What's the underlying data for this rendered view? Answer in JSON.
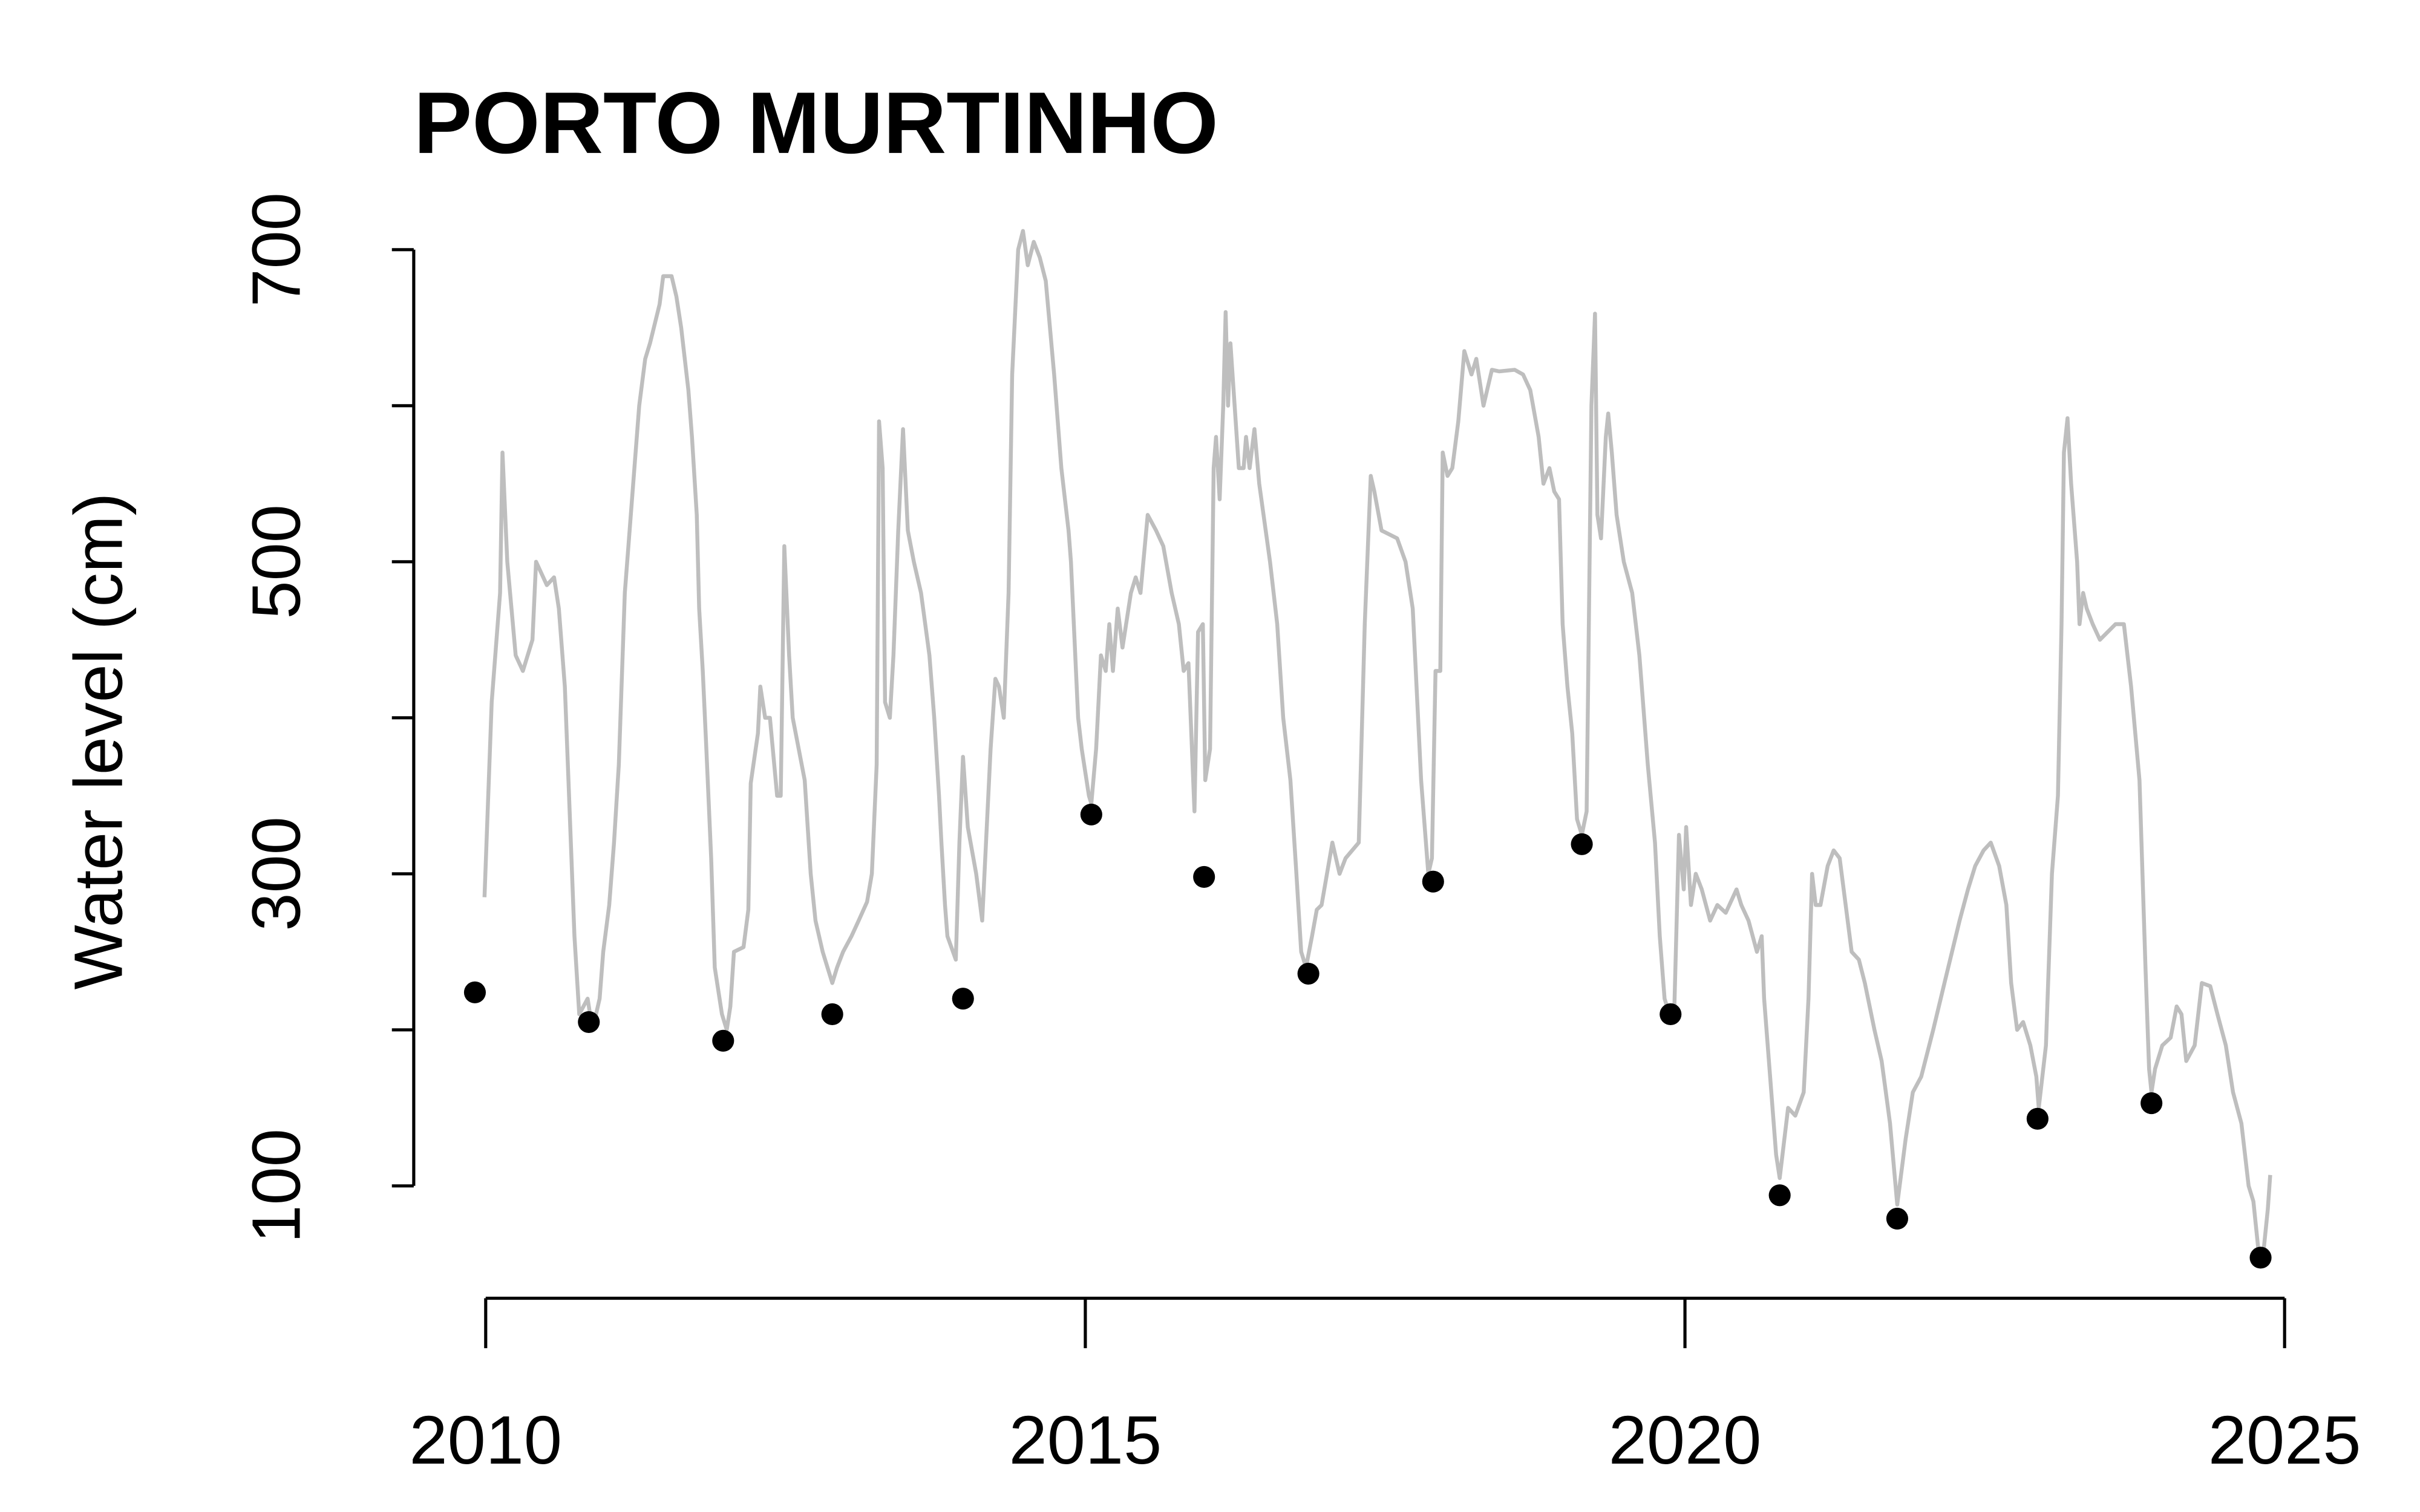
{
  "chart_data": {
    "type": "line",
    "title": "PORTO MURTINHO",
    "y_label": "Water level (cm)",
    "xlim": [
      2009.4,
      2025.4
    ],
    "xticks": [
      2010,
      2015,
      2020,
      2025
    ],
    "ylim": [
      26.5,
      742.5
    ],
    "yticks": [
      100,
      {
        "value": 200,
        "label": null
      },
      300,
      {
        "value": 400,
        "label": null
      },
      500,
      {
        "value": 600,
        "label": null
      },
      700
    ],
    "grid": false,
    "series": [
      {
        "type": "line",
        "color": "#bebebe",
        "x": [
          2009.99,
          2010.05,
          2010.12,
          2010.14,
          2010.18,
          2010.25,
          2010.31,
          2010.39,
          2010.42,
          2010.51,
          2010.57,
          2010.61,
          2010.66,
          2010.7,
          2010.74,
          2010.78,
          2010.85,
          2010.89,
          2010.95,
          2010.98,
          2011.03,
          2011.07,
          2011.11,
          2011.16,
          2011.2,
          2011.24,
          2011.28,
          2011.33,
          2011.37,
          2011.45,
          2011.48,
          2011.55,
          2011.59,
          2011.63,
          2011.69,
          2011.72,
          2011.76,
          2011.78,
          2011.81,
          2011.84,
          2011.88,
          2011.91,
          2011.97,
          2012.01,
          2012.04,
          2012.07,
          2012.15,
          2012.19,
          2012.21,
          2012.27,
          2012.29,
          2012.33,
          2012.37,
          2012.43,
          2012.46,
          2012.49,
          2012.53,
          2012.56,
          2012.66,
          2012.71,
          2012.75,
          2012.81,
          2012.85,
          2012.89,
          2012.93,
          2012.98,
          2013.05,
          2013.11,
          2013.18,
          2013.22,
          2013.26,
          2013.28,
          2013.31,
          2013.33,
          2013.37,
          2013.4,
          2013.44,
          2013.48,
          2013.52,
          2013.57,
          2013.63,
          2013.7,
          2013.74,
          2013.78,
          2013.8,
          2013.83,
          2013.85,
          2013.92,
          2013.95,
          2013.98,
          2014.02,
          2014.09,
          2014.14,
          2014.21,
          2014.25,
          2014.28,
          2014.32,
          2014.36,
          2014.39,
          2014.44,
          2014.48,
          2014.52,
          2014.57,
          2014.62,
          2014.67,
          2014.74,
          2014.8,
          2014.86,
          2014.88,
          2014.91,
          2014.94,
          2014.97,
          2015.03,
          2015.05,
          2015.09,
          2015.13,
          2015.17,
          2015.2,
          2015.23,
          2015.27,
          2015.31,
          2015.38,
          2015.42,
          2015.46,
          2015.52,
          2015.59,
          2015.65,
          2015.72,
          2015.78,
          2015.82,
          2015.86,
          2015.91,
          2015.94,
          2015.98,
          2016.0,
          2016.04,
          2016.07,
          2016.09,
          2016.12,
          2016.15,
          2016.17,
          2016.19,
          2016.21,
          2016.28,
          2016.32,
          2016.34,
          2016.37,
          2016.41,
          2016.45,
          2016.54,
          2016.6,
          2016.65,
          2016.71,
          2016.76,
          2016.8,
          2016.84,
          2016.89,
          2016.93,
          2016.97,
          2017.06,
          2017.12,
          2017.17,
          2017.28,
          2017.33,
          2017.38,
          2017.41,
          2017.47,
          2017.6,
          2017.67,
          2017.73,
          2017.8,
          2017.84,
          2017.86,
          2017.89,
          2017.92,
          2017.96,
          2017.98,
          2018.02,
          2018.06,
          2018.11,
          2018.16,
          2018.22,
          2018.26,
          2018.32,
          2018.39,
          2018.45,
          2018.58,
          2018.65,
          2018.71,
          2018.78,
          2018.82,
          2018.87,
          2018.91,
          2018.95,
          2018.98,
          2019.02,
          2019.06,
          2019.1,
          2019.14,
          2019.18,
          2019.22,
          2019.25,
          2019.27,
          2019.3,
          2019.34,
          2019.36,
          2019.39,
          2019.43,
          2019.49,
          2019.56,
          2019.62,
          2019.69,
          2019.75,
          2019.79,
          2019.83,
          2019.87,
          2019.91,
          2019.95,
          2019.99,
          2020.01,
          2020.05,
          2020.09,
          2020.14,
          2020.21,
          2020.27,
          2020.34,
          2020.43,
          2020.47,
          2020.53,
          2020.6,
          2020.64,
          2020.66,
          2020.72,
          2020.76,
          2020.79,
          2020.86,
          2020.92,
          2020.99,
          2021.03,
          2021.06,
          2021.09,
          2021.13,
          2021.19,
          2021.24,
          2021.29,
          2021.34,
          2021.39,
          2021.45,
          2021.5,
          2021.58,
          2021.64,
          2021.71,
          2021.77,
          2021.84,
          2021.9,
          2021.97,
          2022.07,
          2022.17,
          2022.29,
          2022.36,
          2022.42,
          2022.49,
          2022.55,
          2022.62,
          2022.68,
          2022.72,
          2022.77,
          2022.82,
          2022.88,
          2022.93,
          2022.95,
          2023.01,
          2023.06,
          2023.11,
          2023.14,
          2023.16,
          2023.19,
          2023.22,
          2023.27,
          2023.29,
          2023.32,
          2023.35,
          2023.4,
          2023.46,
          2023.59,
          2023.66,
          2023.72,
          2023.79,
          2023.84,
          2023.87,
          2023.89,
          2023.92,
          2023.98,
          2024.05,
          2024.1,
          2024.14,
          2024.18,
          2024.25,
          2024.31,
          2024.38,
          2024.44,
          2024.51,
          2024.57,
          2024.64,
          2024.7,
          2024.74,
          2024.78,
          2024.82,
          2024.86,
          2024.88
        ],
        "values": [
          285,
          410,
          480,
          570,
          500,
          440,
          430,
          450,
          500,
          485,
          490,
          470,
          420,
          340,
          260,
          210,
          220,
          200,
          220,
          250,
          280,
          320,
          370,
          480,
          520,
          560,
          600,
          630,
          640,
          665,
          683,
          683,
          670,
          650,
          610,
          580,
          530,
          470,
          430,
          380,
          310,
          240,
          210,
          200,
          215,
          250,
          253,
          277,
          358,
          390,
          420,
          400,
          400,
          350,
          350,
          510,
          440,
          400,
          360,
          300,
          270,
          250,
          240,
          230,
          240,
          250,
          260,
          270,
          282,
          300,
          370,
          590,
          560,
          410,
          400,
          440,
          520,
          585,
          520,
          500,
          480,
          440,
          400,
          350,
          320,
          280,
          260,
          245,
          320,
          375,
          330,
          300,
          270,
          380,
          425,
          420,
          400,
          480,
          620,
          700,
          712,
          690,
          705,
          695,
          680,
          620,
          560,
          520,
          500,
          450,
          400,
          380,
          350,
          345,
          380,
          440,
          430,
          460,
          430,
          470,
          445,
          480,
          490,
          480,
          530,
          520,
          510,
          480,
          460,
          430,
          435,
          340,
          455,
          460,
          360,
          380,
          560,
          580,
          540,
          600,
          660,
          600,
          640,
          560,
          560,
          580,
          560,
          585,
          550,
          500,
          460,
          400,
          360,
          300,
          250,
          240,
          260,
          277,
          280,
          320,
          300,
          310,
          320,
          460,
          555,
          545,
          520,
          515,
          500,
          470,
          360,
          320,
          300,
          310,
          430,
          430,
          570,
          555,
          560,
          590,
          635,
          620,
          630,
          600,
          623,
          622,
          623,
          620,
          610,
          580,
          550,
          560,
          545,
          540,
          460,
          420,
          390,
          335,
          325,
          340,
          600,
          659,
          530,
          515,
          580,
          595,
          570,
          530,
          500,
          480,
          440,
          370,
          320,
          260,
          220,
          210,
          210,
          325,
          290,
          330,
          280,
          300,
          290,
          270,
          280,
          275,
          290,
          280,
          270,
          250,
          260,
          220,
          160,
          120,
          105,
          150,
          145,
          160,
          220,
          300,
          280,
          280,
          305,
          315,
          310,
          280,
          250,
          245,
          230,
          200,
          180,
          140,
          88,
          130,
          160,
          170,
          200,
          232,
          270,
          290,
          305,
          315,
          320,
          305,
          280,
          230,
          200,
          205,
          190,
          170,
          150,
          190,
          300,
          350,
          460,
          570,
          592,
          550,
          500,
          460,
          480,
          470,
          460,
          450,
          460,
          460,
          420,
          360,
          240,
          175,
          160,
          175,
          190,
          195,
          215,
          210,
          180,
          190,
          230,
          228,
          210,
          190,
          160,
          140,
          100,
          90,
          60,
          55,
          85,
          107
        ]
      },
      {
        "type": "scatter",
        "color": "#000000",
        "x": [
          2009.91,
          2010.86,
          2011.98,
          2012.89,
          2013.98,
          2015.05,
          2015.99,
          2016.86,
          2017.9,
          2019.14,
          2019.88,
          2020.79,
          2021.77,
          2022.94,
          2023.89,
          2024.8
        ],
        "values": [
          224,
          205,
          193,
          210,
          220,
          338,
          298,
          236,
          295,
          319,
          210,
          94,
          79,
          143,
          153,
          54
        ]
      }
    ]
  }
}
